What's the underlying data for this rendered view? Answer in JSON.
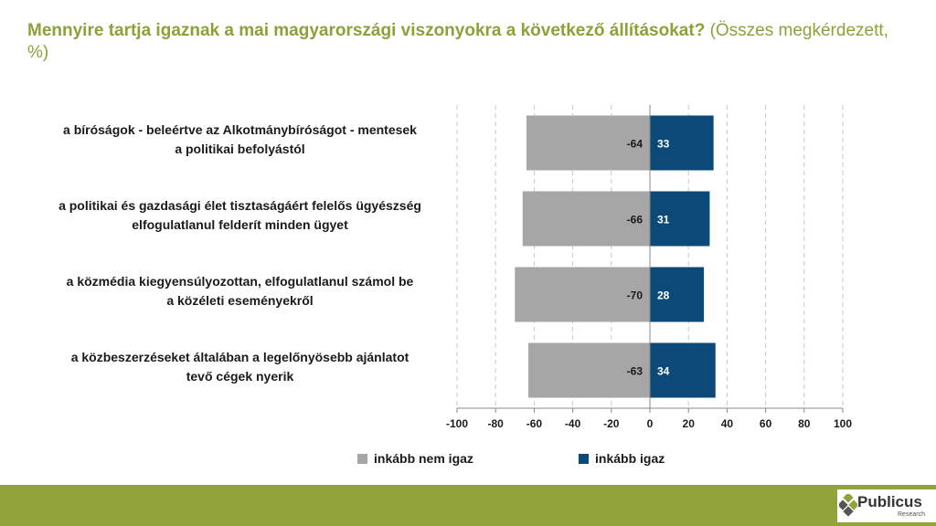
{
  "title": {
    "main": "Mennyire tartja igaznak a mai magyarországi viszonyokra a következő állításokat?",
    "sub": "(Összes megkérdezett, %)"
  },
  "chart_data": {
    "type": "bar",
    "orientation": "horizontal",
    "stacked": "diverging",
    "categories": [
      "a bíróságok - beleértve az Alkotmánybíróságot - mentesek a politikai befolyástól",
      "a politikai és gazdasági élet tisztaságáért felelős ügyészség elfogulatlanul felderít minden ügyet",
      "a közmédia kiegyensúlyozottan, elfogulatlanul számol be a közéleti eseményekről",
      "a közbeszerzéseket általában a legelőnyösebb ajánlatot tevő cégek nyerik"
    ],
    "category_lines": [
      [
        "a bíróságok - beleértve az Alkotmánybíróságot - mentesek",
        "a politikai befolyástól"
      ],
      [
        "a politikai és gazdasági élet tisztaságáért felelős ügyészség",
        "elfogulatlanul felderít minden ügyet"
      ],
      [
        "a közmédia kiegyensúlyozottan, elfogulatlanul számol be",
        "a közéleti eseményekről"
      ],
      [
        "a közbeszerzéseket általában a legelőnyösebb ajánlatot",
        "tevő cégek nyerik"
      ]
    ],
    "series": [
      {
        "name": "inkább nem igaz",
        "values": [
          -64,
          -66,
          -70,
          -63
        ],
        "color": "#a6a6a6"
      },
      {
        "name": "inkább igaz",
        "values": [
          33,
          31,
          28,
          34
        ],
        "color": "#0b4a78"
      }
    ],
    "xlim": [
      -100,
      100
    ],
    "xticks": [
      -100,
      -80,
      -60,
      -40,
      -20,
      0,
      20,
      40,
      60,
      80,
      100
    ],
    "grid": true,
    "legend": "bottom"
  },
  "footer": {
    "brand": "Publicus",
    "brand_sub": "Research",
    "bar_color": "#93a33c"
  }
}
